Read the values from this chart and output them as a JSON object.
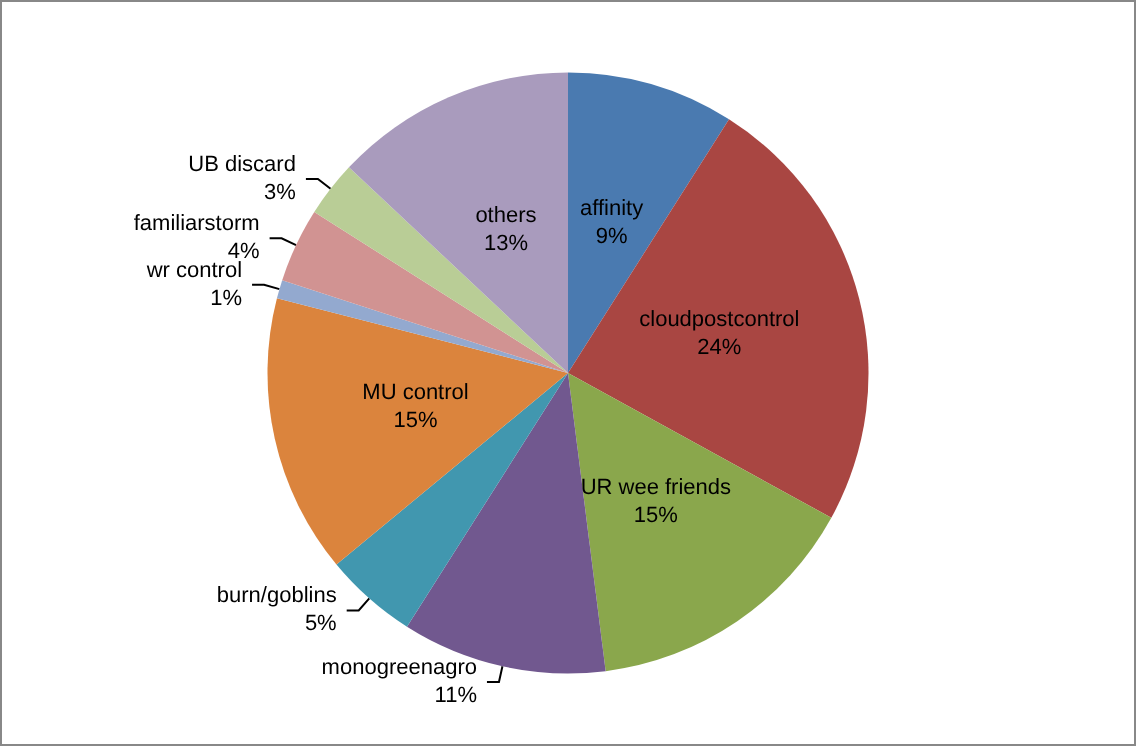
{
  "chart_data": {
    "type": "pie",
    "categories": [
      "affinity",
      "cloudpostcontrol",
      "UR wee friends",
      "monogreenagro",
      "burn/goblins",
      "MU control",
      "wr control",
      "familiarstorm",
      "UB discard",
      "others"
    ],
    "values": [
      9,
      24,
      15,
      11,
      5,
      15,
      1,
      4,
      3,
      13
    ],
    "value_labels": [
      "9%",
      "24%",
      "15%",
      "11%",
      "5%",
      "15%",
      "1%",
      "4%",
      "3%",
      "13%"
    ],
    "colors": [
      "#4a7ab0",
      "#a94642",
      "#8aa74c",
      "#71588f",
      "#4197af",
      "#db843d",
      "#93a9cf",
      "#d19392",
      "#b9cd96",
      "#a99bbd"
    ],
    "legend": false
  }
}
